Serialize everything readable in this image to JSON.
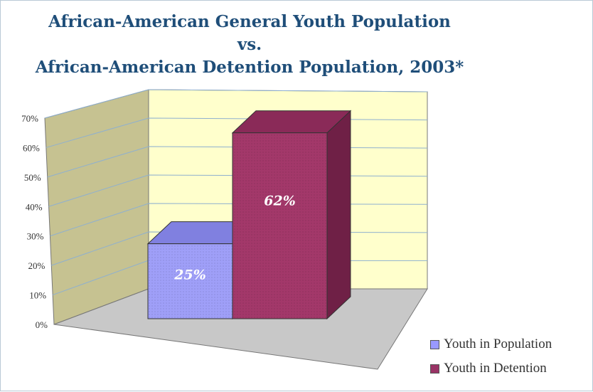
{
  "chart_data": {
    "type": "bar",
    "title": [
      "African-American General Youth Population",
      "vs.",
      "African-American Detention Population, 2003*"
    ],
    "categories": [
      "Youth in Population",
      "Youth in Detention"
    ],
    "values": [
      25,
      62
    ],
    "data_labels": [
      "25%",
      "62%"
    ],
    "y_ticks": [
      "0%",
      "10%",
      "20%",
      "30%",
      "40%",
      "50%",
      "60%",
      "70%"
    ],
    "ylim": [
      0,
      70
    ],
    "xlabel": "",
    "ylabel": "",
    "grid": true,
    "legend": "bottom-right",
    "colors": [
      "#9999ff",
      "#993366"
    ],
    "three_d": true
  }
}
